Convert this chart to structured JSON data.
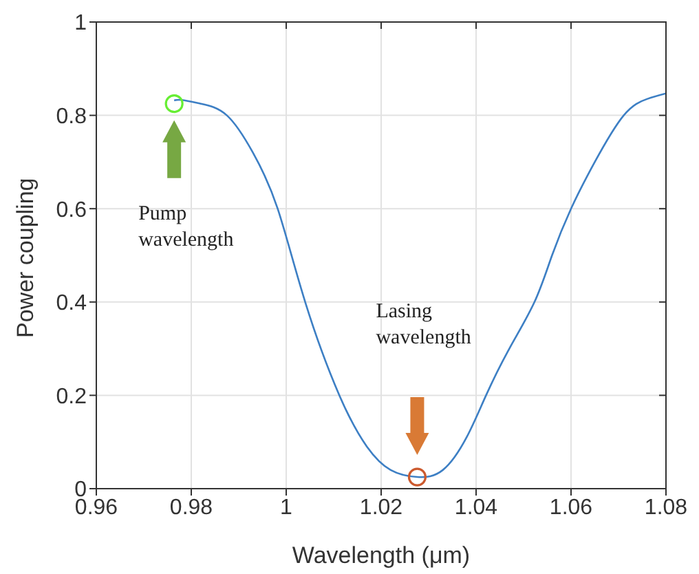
{
  "chart_data": {
    "type": "line",
    "xlabel": "Wavelength (μm)",
    "ylabel": "Power coupling",
    "xlim": [
      0.96,
      1.08
    ],
    "xticks": [
      0.96,
      0.98,
      1,
      1.02,
      1.04,
      1.06,
      1.08
    ],
    "ylim": [
      0,
      1
    ],
    "yticks": [
      0,
      0.2,
      0.4,
      0.6,
      0.8,
      1
    ],
    "grid": true,
    "series": [
      {
        "color": "#3d7fc4",
        "marker": "none",
        "x": [
          0.9764,
          0.978,
          0.982,
          0.9875,
          0.993,
          0.9982,
          1.004,
          1.0112,
          1.017,
          1.022,
          1.0276,
          1.033,
          1.038,
          1.0421,
          1.047,
          1.0523,
          1.056,
          1.06,
          1.065,
          1.0711,
          1.076,
          1.08
        ],
        "values": [
          0.832,
          0.833,
          0.825,
          0.8,
          0.72,
          0.6,
          0.4,
          0.2,
          0.09,
          0.04,
          0.025,
          0.04,
          0.11,
          0.2,
          0.3,
          0.4,
          0.5,
          0.6,
          0.7,
          0.8,
          0.835,
          0.847
        ]
      },
      {
        "type": "scatter",
        "marker": "circle",
        "color": "#66ee33",
        "x": [
          0.9764
        ],
        "values": [
          0.825
        ]
      },
      {
        "type": "scatter",
        "marker": "circle",
        "color": "#cc5a2e",
        "x": [
          1.0276
        ],
        "values": [
          0.025
        ]
      }
    ],
    "annotations": [
      "Pump wavelength",
      "Lasing wavelength"
    ]
  }
}
